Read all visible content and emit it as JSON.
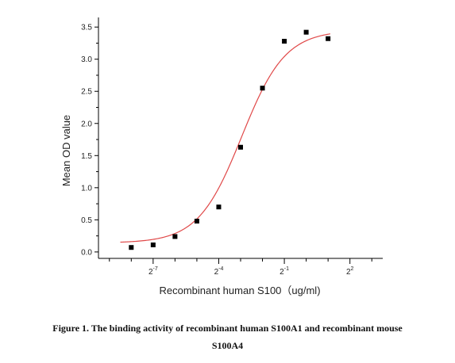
{
  "chart_data": {
    "type": "scatter",
    "xlabel": "Recombinant human  S100（ug/ml)",
    "ylabel": "Mean OD value",
    "x_scale": "log2",
    "xlim_log2": [
      -9.5,
      3.5
    ],
    "ylim": [
      -0.1,
      3.65
    ],
    "y_ticks": [
      0.0,
      0.5,
      1.0,
      1.5,
      2.0,
      2.5,
      3.0,
      3.5
    ],
    "y_tick_labels": [
      "0.0",
      "0.5",
      "1.0",
      "1.5",
      "2.0",
      "2.5",
      "3.0",
      "3.5"
    ],
    "x_major_ticks_log2": [
      -7,
      -4,
      -1,
      2
    ],
    "x_minor_ticks_log2": [
      -9,
      -8,
      -6,
      -5,
      -3,
      -2,
      0,
      1,
      3
    ],
    "x_tick_labels": [
      {
        "base": "2",
        "exp": "-7"
      },
      {
        "base": "2",
        "exp": "-4"
      },
      {
        "base": "2",
        "exp": "-1"
      },
      {
        "base": "2",
        "exp": "2"
      }
    ],
    "points_log2": [
      {
        "x": -8,
        "y": 0.07
      },
      {
        "x": -7,
        "y": 0.11
      },
      {
        "x": -6,
        "y": 0.24
      },
      {
        "x": -5,
        "y": 0.48
      },
      {
        "x": -4,
        "y": 0.7
      },
      {
        "x": -3,
        "y": 1.63
      },
      {
        "x": -2,
        "y": 2.55
      },
      {
        "x": -1,
        "y": 3.28
      },
      {
        "x": 0,
        "y": 3.42
      },
      {
        "x": 1,
        "y": 3.32
      }
    ],
    "fit": {
      "type": "4PL",
      "bottom": 0.14,
      "top": 3.45,
      "log2_ec50": -2.95,
      "hill_log2": 1.45
    },
    "colors": {
      "points": "#000000",
      "fit_line": "#e04848",
      "axis": "#000000"
    }
  },
  "caption": {
    "line1": "Figure 1. The binding activity of recombinant human S100A1 and recombinant mouse",
    "line2": "S100A4"
  }
}
